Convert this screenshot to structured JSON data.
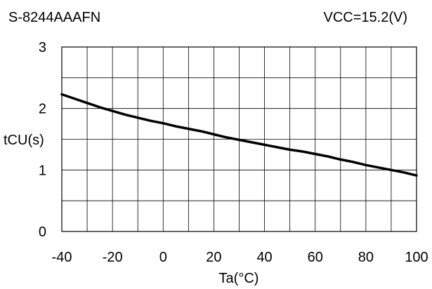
{
  "chart_data": {
    "type": "line",
    "part_number": "S-8244AAAFN",
    "condition": "VCC=15.2(V)",
    "xlabel": "Ta(°C)",
    "ylabel": "tCU(s)",
    "xlim": [
      -40,
      100
    ],
    "ylim": [
      0,
      3
    ],
    "x_ticks": [
      -40,
      -30,
      -20,
      -10,
      0,
      10,
      20,
      30,
      40,
      50,
      60,
      70,
      80,
      90,
      100
    ],
    "x_tick_labels": [
      "-40",
      "-20",
      "0",
      "20",
      "40",
      "60",
      "80",
      "100"
    ],
    "x_tick_label_values": [
      -40,
      -20,
      0,
      20,
      40,
      60,
      80,
      100
    ],
    "y_ticks": [
      0,
      0.5,
      1,
      1.5,
      2,
      2.5,
      3
    ],
    "y_tick_labels": [
      "0",
      "1",
      "2",
      "3"
    ],
    "y_tick_label_values": [
      0,
      1,
      2,
      3
    ],
    "grid": true,
    "legend": "none",
    "line_color": "#000000",
    "grid_color": "#000000",
    "series": [
      {
        "x": [
          -40,
          -35,
          -30,
          -25,
          -20,
          -15,
          -10,
          -5,
          0,
          5,
          10,
          15,
          20,
          25,
          30,
          35,
          40,
          45,
          50,
          55,
          60,
          65,
          70,
          75,
          80,
          85,
          90,
          95,
          100
        ],
        "y": [
          2.23,
          2.16,
          2.09,
          2.02,
          1.96,
          1.9,
          1.85,
          1.8,
          1.76,
          1.71,
          1.67,
          1.63,
          1.58,
          1.53,
          1.49,
          1.45,
          1.41,
          1.37,
          1.33,
          1.3,
          1.26,
          1.22,
          1.17,
          1.13,
          1.08,
          1.04,
          1.0,
          0.96,
          0.91
        ]
      }
    ]
  }
}
